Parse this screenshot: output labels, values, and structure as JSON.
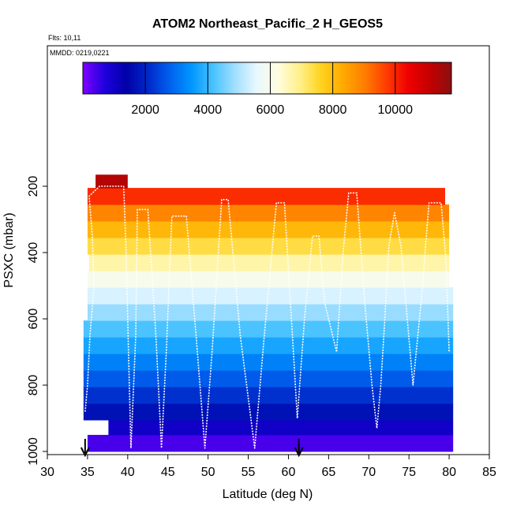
{
  "chart_data": {
    "type": "heatmap",
    "title": "ATOM2 Northeast_Pacific_2 H_GEOS5",
    "flights_note": "Flts: 10,11",
    "date_note": "MMDD: 0219,0221",
    "xlabel": "Latitude (deg N)",
    "ylabel": "PSXC (mbar)",
    "xlim": [
      30,
      85
    ],
    "ylim": [
      1000,
      100
    ],
    "x_ticks": [
      "30",
      "35",
      "40",
      "45",
      "50",
      "55",
      "60",
      "65",
      "70",
      "75",
      "80",
      "85"
    ],
    "y_ticks": [
      "200",
      "400",
      "600",
      "800",
      "1000"
    ],
    "grid": false,
    "colorbar": {
      "range": [
        0,
        11800
      ],
      "tick_labels": [
        "2000",
        "4000",
        "6000",
        "8000",
        "10000"
      ],
      "colors": [
        "#7f00ff",
        "#1f00dd",
        "#0000a8",
        "#0028c8",
        "#0060ee",
        "#0096ff",
        "#46c2ff",
        "#a0deff",
        "#e8f8ff",
        "#fffde0",
        "#fff08a",
        "#ffd21e",
        "#ffaa00",
        "#ff7d00",
        "#ff3c00",
        "#f00000",
        "#c40000",
        "#8b1010"
      ]
    },
    "cells": [
      {
        "lat": [
          35.0,
          80.5
        ],
        "p": [
          950,
          1000
        ],
        "value": 400
      },
      {
        "lat": [
          37.6,
          80.5
        ],
        "p": [
          905,
          950
        ],
        "value": 1000
      },
      {
        "lat": [
          34.5,
          80.5
        ],
        "p": [
          855,
          905
        ],
        "value": 1700
      },
      {
        "lat": [
          34.5,
          80.5
        ],
        "p": [
          805,
          855
        ],
        "value": 2200
      },
      {
        "lat": [
          34.5,
          80.5
        ],
        "p": [
          755,
          805
        ],
        "value": 2700
      },
      {
        "lat": [
          34.5,
          80.5
        ],
        "p": [
          705,
          755
        ],
        "value": 3200
      },
      {
        "lat": [
          34.5,
          80.5
        ],
        "p": [
          655,
          705
        ],
        "value": 3700
      },
      {
        "lat": [
          34.5,
          80.5
        ],
        "p": [
          605,
          655
        ],
        "value": 4200
      },
      {
        "lat": [
          35.0,
          80.5
        ],
        "p": [
          555,
          605
        ],
        "value": 4800
      },
      {
        "lat": [
          35.0,
          80.5
        ],
        "p": [
          505,
          555
        ],
        "value": 5400
      },
      {
        "lat": [
          35.0,
          80.0
        ],
        "p": [
          455,
          505
        ],
        "value": 6000
      },
      {
        "lat": [
          35.2,
          80.0
        ],
        "p": [
          405,
          455
        ],
        "value": 6700
      },
      {
        "lat": [
          35.0,
          80.0
        ],
        "p": [
          355,
          405
        ],
        "value": 7400
      },
      {
        "lat": [
          35.0,
          80.0
        ],
        "p": [
          305,
          355
        ],
        "value": 8100
      },
      {
        "lat": [
          35.0,
          80.0
        ],
        "p": [
          255,
          305
        ],
        "value": 8900
      },
      {
        "lat": [
          35.0,
          79.5
        ],
        "p": [
          205,
          255
        ],
        "value": 9900
      },
      {
        "lat": [
          36.0,
          40.0
        ],
        "p": [
          165,
          205
        ],
        "value": 11300
      }
    ],
    "flight_track": [
      [
        34.7,
        880
      ],
      [
        35.0,
        800
      ],
      [
        35.3,
        650
      ],
      [
        35.8,
        500
      ],
      [
        35.6,
        350
      ],
      [
        35.2,
        230
      ],
      [
        36.5,
        200
      ],
      [
        39.5,
        200
      ],
      [
        39.8,
        400
      ],
      [
        40.1,
        700
      ],
      [
        40.4,
        990
      ],
      [
        41.0,
        650
      ],
      [
        41.2,
        270
      ],
      [
        42.5,
        270
      ],
      [
        43.5,
        650
      ],
      [
        44.2,
        990
      ],
      [
        44.8,
        700
      ],
      [
        45.5,
        290
      ],
      [
        47.3,
        290
      ],
      [
        48.5,
        650
      ],
      [
        49.6,
        990
      ],
      [
        50.5,
        700
      ],
      [
        51.7,
        240
      ],
      [
        52.5,
        240
      ],
      [
        54.0,
        650
      ],
      [
        55.8,
        990
      ],
      [
        57.0,
        650
      ],
      [
        58.5,
        250
      ],
      [
        59.5,
        250
      ],
      [
        60.5,
        650
      ],
      [
        61.1,
        900
      ],
      [
        62.0,
        600
      ],
      [
        63.0,
        350
      ],
      [
        63.8,
        350
      ],
      [
        64.5,
        550
      ],
      [
        66.0,
        700
      ],
      [
        66.8,
        400
      ],
      [
        67.5,
        220
      ],
      [
        68.5,
        220
      ],
      [
        69.5,
        550
      ],
      [
        70.4,
        800
      ],
      [
        71.0,
        930
      ],
      [
        71.5,
        800
      ],
      [
        72.0,
        600
      ],
      [
        72.5,
        380
      ],
      [
        73.2,
        280
      ],
      [
        74.0,
        380
      ],
      [
        74.5,
        520
      ],
      [
        75.5,
        800
      ],
      [
        76.5,
        550
      ],
      [
        77.5,
        250
      ],
      [
        79.0,
        250
      ],
      [
        79.6,
        420
      ],
      [
        80.0,
        700
      ]
    ],
    "arrows_lat": [
      34.7,
      61.3
    ]
  }
}
